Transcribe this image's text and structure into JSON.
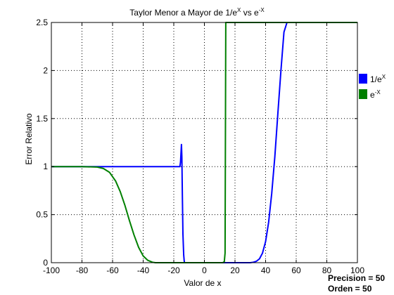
{
  "chart_data": {
    "type": "line",
    "title_base": "Taylor Menor a Mayor de 1/e",
    "title_sup1": "X",
    "title_mid": " vs e",
    "title_sup2": "-X",
    "xlabel": "Valor de x",
    "ylabel": "Error Relativo",
    "xlim": [
      -100,
      100
    ],
    "ylim": [
      0,
      2.5
    ],
    "xticks": [
      -100,
      -80,
      -60,
      -40,
      -20,
      0,
      20,
      40,
      60,
      80,
      100
    ],
    "yticks": [
      0,
      0.5,
      1,
      1.5,
      2,
      2.5
    ],
    "ytick_labels": [
      "0",
      "0.5",
      "1",
      "1.5",
      "2",
      "2.5"
    ],
    "grid": true,
    "legend_position": "outside-right",
    "series": [
      {
        "label_base": "1/e",
        "label_sup": "X",
        "color": "#0000ff",
        "x": [
          -100,
          -70,
          -50,
          -30,
          -16,
          -15.6,
          -15,
          -14.7,
          -14.4,
          -14,
          -13.5,
          -13.2,
          -13,
          -12,
          0,
          20,
          30,
          32,
          34,
          36,
          38,
          40,
          42,
          44,
          46,
          48,
          50,
          52,
          54
        ],
        "y": [
          1,
          1,
          1,
          1,
          1,
          1.05,
          1.23,
          1.1,
          0.7,
          0.3,
          0.08,
          0.02,
          0,
          0,
          0,
          0,
          0,
          0.005,
          0.015,
          0.04,
          0.1,
          0.22,
          0.42,
          0.72,
          1.1,
          1.55,
          2.0,
          2.4,
          2.5
        ]
      },
      {
        "label_base": "e",
        "label_sup": "-X",
        "color": "#008000",
        "x": [
          -100,
          -80,
          -70,
          -66,
          -62,
          -58,
          -55,
          -52,
          -49,
          -46,
          -43,
          -40,
          -37,
          -34,
          -32,
          -30,
          0,
          12,
          13,
          13.5,
          14,
          100
        ],
        "y": [
          1,
          1,
          0.995,
          0.98,
          0.94,
          0.85,
          0.74,
          0.6,
          0.44,
          0.29,
          0.16,
          0.07,
          0.025,
          0.005,
          0,
          0,
          0,
          0,
          0.01,
          0.1,
          2.5,
          2.5
        ]
      }
    ]
  },
  "annotations": {
    "precision": "Precision = 50",
    "order": "Orden = 50"
  }
}
